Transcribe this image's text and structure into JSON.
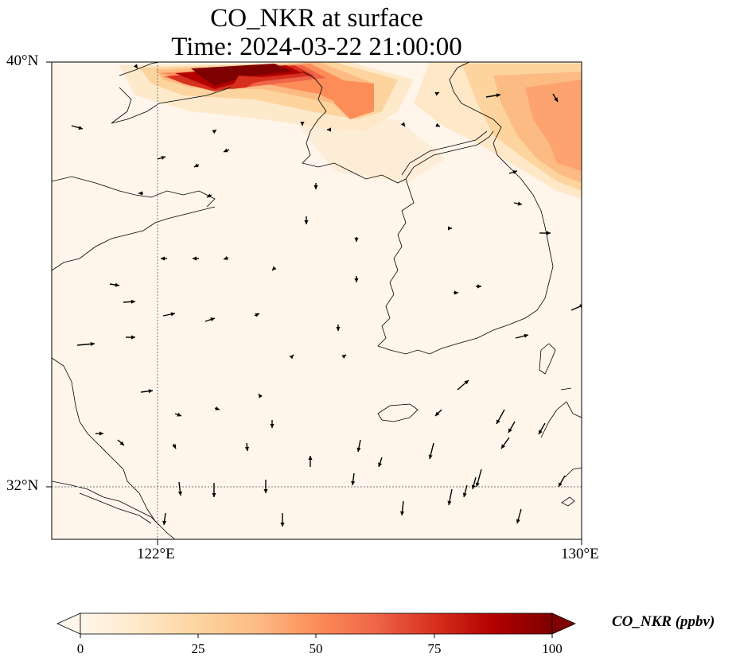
{
  "title": {
    "line1": "CO_NKR at surface",
    "line2": "Time: 2024-03-22 21:00:00"
  },
  "map": {
    "lat_ticks": [
      "40°N",
      "32°N"
    ],
    "lon_ticks": [
      "122°E",
      "130°E"
    ],
    "extent_lon": [
      120,
      130
    ],
    "extent_lat": [
      31,
      40
    ],
    "gridlines": "dotted at 122°E and 32°N",
    "background_color": "#fff5eb",
    "plume_color_high": "#7f0000",
    "coastline_color": "#000000"
  },
  "colorbar": {
    "label": "CO_NKR (ppbv)",
    "ticks": [
      "0",
      "25",
      "50",
      "75",
      "100"
    ],
    "range": [
      0,
      100
    ],
    "colormap": "OrRd",
    "extend": "both"
  }
}
